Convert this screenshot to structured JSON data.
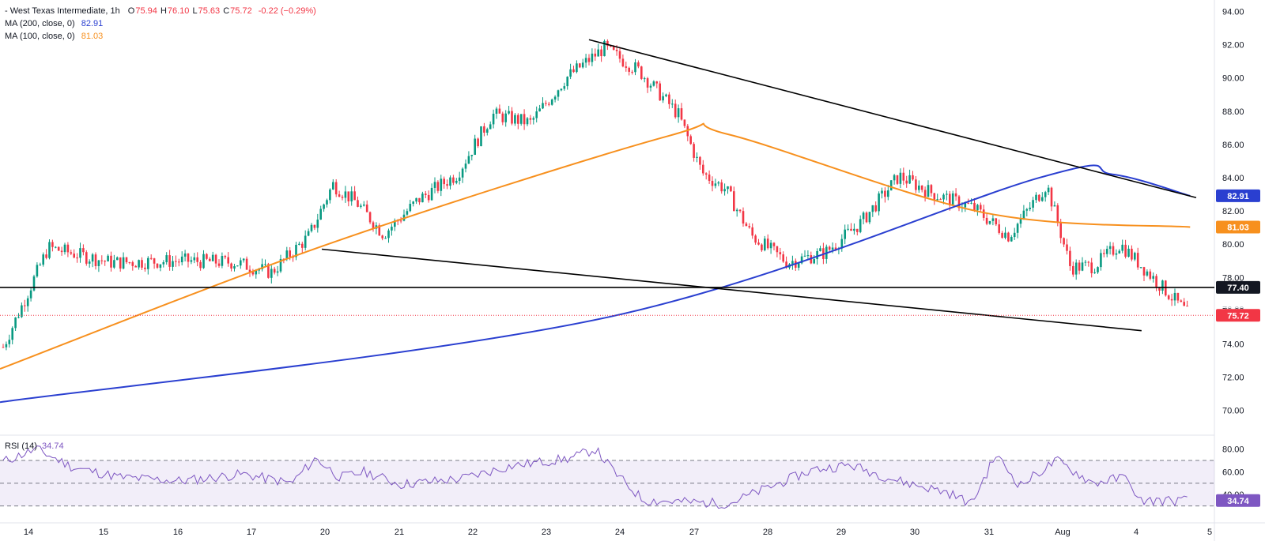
{
  "header": {
    "symbol": "- West Texas Intermediate, 1h",
    "o_label": "O",
    "o": "75.94",
    "h_label": "H",
    "h": "76.10",
    "l_label": "L",
    "l": "75.63",
    "c_label": "C",
    "c": "75.72",
    "change": "-0.22 (−0.29%)",
    "ma200_label": "MA (200, close, 0)",
    "ma200_value": "82.91",
    "ma100_label": "MA (100, close, 0)",
    "ma100_value": "81.03",
    "rsi_label": "RSI (14)",
    "rsi_value": "34.74"
  },
  "colors": {
    "up": "#089981",
    "down": "#f23645",
    "ma200": "#2a3fd0",
    "ma100": "#f7901e",
    "rsi": "#7e57c2",
    "price_line": "#f23645",
    "trendline": "#000000"
  },
  "chart_data": {
    "type": "candlestick",
    "series_name": "West Texas Intermediate, 1h",
    "x_ticks": [
      "14",
      "15",
      "16",
      "17",
      "20",
      "21",
      "22",
      "23",
      "24",
      "27",
      "28",
      "29",
      "30",
      "31",
      "Aug",
      "4",
      "5"
    ],
    "y_ticks": [
      "94.00",
      "92.00",
      "90.00",
      "88.00",
      "86.00",
      "84.00",
      "82.00",
      "80.00",
      "78.00",
      "76.00",
      "74.00",
      "72.00",
      "70.00"
    ],
    "ylim": [
      68.8,
      94.4
    ],
    "price_anchors": [
      [
        "14",
        73.6
      ],
      [
        "14",
        79.8
      ],
      [
        "15",
        78.9
      ],
      [
        "16",
        79.0
      ],
      [
        "17",
        78.9
      ],
      [
        "17",
        78.3
      ],
      [
        "20",
        80.5
      ],
      [
        "20",
        83.6
      ],
      [
        "20",
        82.5
      ],
      [
        "21",
        80.6
      ],
      [
        "21",
        82.7
      ],
      [
        "22",
        84.2
      ],
      [
        "22",
        87.8
      ],
      [
        "23",
        87.3
      ],
      [
        "23",
        90.0
      ],
      [
        "24",
        91.8
      ],
      [
        "24",
        90.4
      ],
      [
        "27",
        87.8
      ],
      [
        "27",
        84.3
      ],
      [
        "27",
        83.3
      ],
      [
        "28",
        80.5
      ],
      [
        "28",
        78.9
      ],
      [
        "29",
        79.5
      ],
      [
        "29",
        81.3
      ],
      [
        "30",
        84.1
      ],
      [
        "30",
        83.0
      ],
      [
        "31",
        82.2
      ],
      [
        "31",
        80.5
      ],
      [
        "Aug",
        83.6
      ],
      [
        "Aug",
        78.6
      ],
      [
        "Aug",
        78.7
      ],
      [
        "4",
        80.0
      ],
      [
        "4",
        75.7
      ]
    ],
    "ma200": [
      [
        0,
        70.5
      ],
      [
        0.5,
        75.6
      ],
      [
        0.856,
        84.0
      ],
      [
        0.916,
        84.2
      ],
      [
        0.98,
        82.91
      ]
    ],
    "ma100": [
      [
        0,
        72.5
      ],
      [
        0.27,
        80.0
      ],
      [
        0.55,
        86.5
      ],
      [
        0.6,
        86.6
      ],
      [
        0.81,
        81.9
      ],
      [
        0.98,
        81.03
      ]
    ],
    "horizontal_line": {
      "value": 77.4,
      "label": "77.40"
    },
    "last_price": {
      "value": 75.72,
      "label": "75.72",
      "ghost": "76.00"
    },
    "trendlines": [
      {
        "points": [
          [
            0.485,
            92.3
          ],
          [
            0.985,
            82.8
          ]
        ]
      },
      {
        "points": [
          [
            0.265,
            79.7
          ],
          [
            0.94,
            74.8
          ]
        ]
      }
    ],
    "ma_labels": {
      "ma200": "82.91",
      "ma100": "81.03"
    },
    "rsi": {
      "period": 14,
      "levels": [
        70,
        50,
        30
      ],
      "y_ticks": [
        "80.00",
        "60.00",
        "40.00"
      ],
      "ylim": [
        20,
        86
      ],
      "last": "34.74",
      "anchors": [
        [
          0.0,
          68
        ],
        [
          0.03,
          80
        ],
        [
          0.06,
          64
        ],
        [
          0.1,
          55
        ],
        [
          0.15,
          52
        ],
        [
          0.2,
          58
        ],
        [
          0.24,
          50
        ],
        [
          0.26,
          72
        ],
        [
          0.28,
          55
        ],
        [
          0.3,
          60
        ],
        [
          0.33,
          49
        ],
        [
          0.38,
          54
        ],
        [
          0.42,
          65
        ],
        [
          0.47,
          72
        ],
        [
          0.49,
          80
        ],
        [
          0.51,
          55
        ],
        [
          0.53,
          35
        ],
        [
          0.6,
          32
        ],
        [
          0.63,
          45
        ],
        [
          0.67,
          62
        ],
        [
          0.7,
          66
        ],
        [
          0.74,
          52
        ],
        [
          0.78,
          42
        ],
        [
          0.8,
          32
        ],
        [
          0.82,
          75
        ],
        [
          0.84,
          48
        ],
        [
          0.87,
          70
        ],
        [
          0.9,
          50
        ],
        [
          0.93,
          56
        ],
        [
          0.935,
          34.74
        ]
      ]
    }
  }
}
